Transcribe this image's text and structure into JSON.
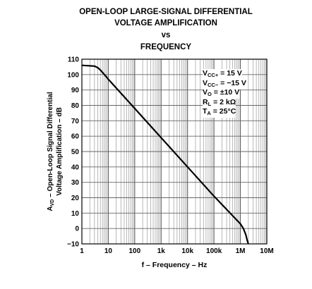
{
  "title_lines": [
    "OPEN-LOOP LARGE-SIGNAL DIFFERENTIAL",
    "VOLTAGE AMPLIFICATION",
    "vs",
    "FREQUENCY"
  ],
  "conditions": [
    {
      "sym": "V",
      "sub": "CC+",
      "rest": " = 15 V"
    },
    {
      "sym": "V",
      "sub": "CC−",
      "rest": " = −15 V"
    },
    {
      "sym": "V",
      "sub": "O",
      "rest": " = ±10 V"
    },
    {
      "sym": "R",
      "sub": "L",
      "rest": " = 2 kΩ"
    },
    {
      "sym": "T",
      "sub": "A",
      "rest": " = 25°C"
    }
  ],
  "chart_data": {
    "type": "line",
    "title": "OPEN-LOOP LARGE-SIGNAL DIFFERENTIAL VOLTAGE AMPLIFICATION vs FREQUENCY",
    "xlabel": "f – Frequency – Hz",
    "ylabel_lines": [
      "A₂ᴅ – Open-Loop Signal Differential",
      "Voltage Amplification – dB"
    ],
    "ylabel_main": [
      "A",
      "VD",
      " – Open-Loop Signal Differential"
    ],
    "ylabel_second": "Voltage Amplification – dB",
    "x_scale": "log",
    "xlim": [
      1,
      10000000
    ],
    "ylim": [
      -10,
      110
    ],
    "x_ticks": [
      1,
      10,
      100,
      1000,
      10000,
      100000,
      1000000,
      10000000
    ],
    "x_tick_labels": [
      "1",
      "10",
      "100",
      "1k",
      "10k",
      "100k",
      "1M",
      "10M"
    ],
    "y_ticks": [
      110,
      100,
      90,
      80,
      70,
      60,
      50,
      40,
      30,
      20,
      10,
      0,
      -10
    ],
    "y_tick_labels": [
      "110",
      "100",
      "90",
      "80",
      "70",
      "60",
      "50",
      "40",
      "30",
      "20",
      "10",
      "0",
      "−10"
    ],
    "grid": true,
    "series": [
      {
        "x": [
          1,
          3,
          4,
          5,
          6,
          8,
          10,
          100,
          1000,
          10000,
          100000,
          1000000,
          1300000,
          1600000,
          1800000,
          2000000
        ],
        "values": [
          106,
          105.5,
          104.5,
          103,
          101.5,
          99,
          97,
          78,
          59,
          40,
          21,
          3,
          0,
          -4,
          -7.5,
          -10
        ]
      }
    ]
  }
}
